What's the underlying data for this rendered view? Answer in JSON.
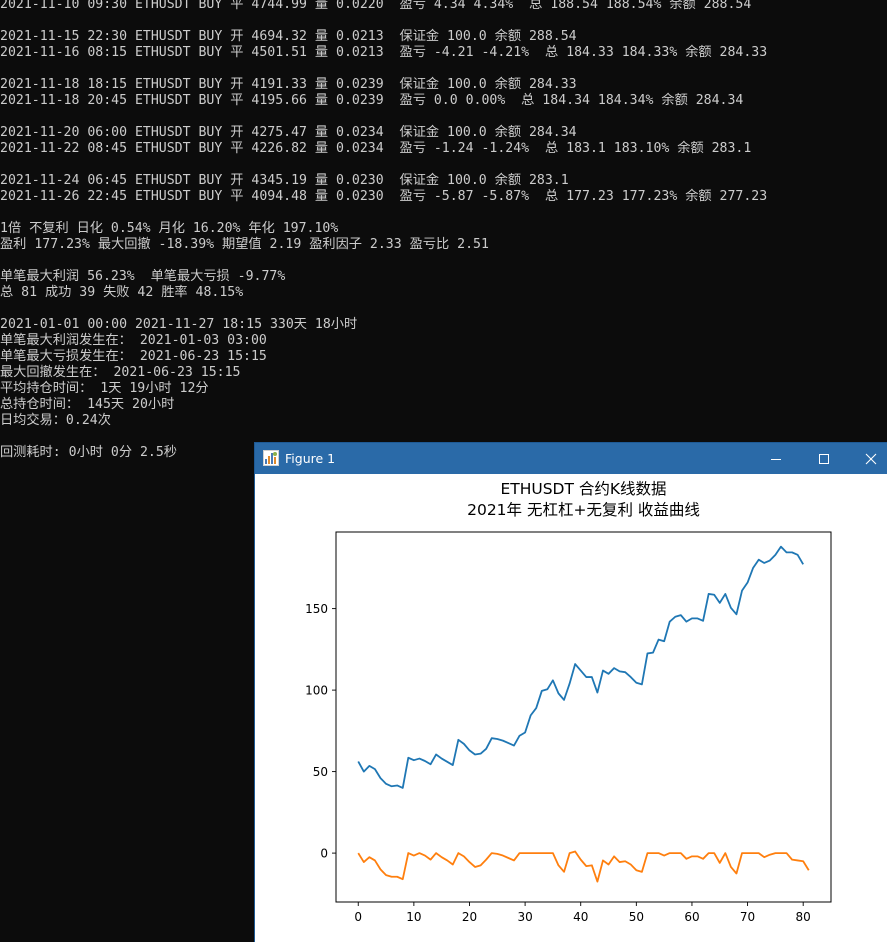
{
  "console": {
    "lines": [
      "2021-11-10 09:30 ETHUSDT BUY 平 4744.99 量 0.0220  盈亏 4.34 4.34%  总 188.54 188.54% 余额 288.54",
      "",
      "2021-11-15 22:30 ETHUSDT BUY 开 4694.32 量 0.0213  保证金 100.0 余额 288.54",
      "2021-11-16 08:15 ETHUSDT BUY 平 4501.51 量 0.0213  盈亏 -4.21 -4.21%  总 184.33 184.33% 余额 284.33",
      "",
      "2021-11-18 18:15 ETHUSDT BUY 开 4191.33 量 0.0239  保证金 100.0 余额 284.33",
      "2021-11-18 20:45 ETHUSDT BUY 平 4195.66 量 0.0239  盈亏 0.0 0.00%  总 184.34 184.34% 余额 284.34",
      "",
      "2021-11-20 06:00 ETHUSDT BUY 开 4275.47 量 0.0234  保证金 100.0 余额 284.34",
      "2021-11-22 08:45 ETHUSDT BUY 平 4226.82 量 0.0234  盈亏 -1.24 -1.24%  总 183.1 183.10% 余额 283.1",
      "",
      "2021-11-24 06:45 ETHUSDT BUY 开 4345.19 量 0.0230  保证金 100.0 余额 283.1",
      "2021-11-26 22:45 ETHUSDT BUY 平 4094.48 量 0.0230  盈亏 -5.87 -5.87%  总 177.23 177.23% 余额 277.23",
      "",
      "1倍 不复利 日化 0.54% 月化 16.20% 年化 197.10%",
      "盈利 177.23% 最大回撤 -18.39% 期望值 2.19 盈利因子 2.33 盈亏比 2.51",
      "",
      "单笔最大利润 56.23%  单笔最大亏损 -9.77%",
      "总 81 成功 39 失败 42 胜率 48.15%",
      "",
      "2021-01-01 00:00 2021-11-27 18:15 330天 18小时",
      "单笔最大利润发生在： 2021-01-03 03:00",
      "单笔最大亏损发生在： 2021-06-23 15:15",
      "最大回撤发生在： 2021-06-23 15:15",
      "平均持仓时间： 1天 19小时 12分",
      "总持仓时间： 145天 20小时",
      "日均交易：0.24次",
      "",
      "回测耗时: 0小时 0分 2.5秒"
    ]
  },
  "window": {
    "title": "Figure 1",
    "minimize_icon": "minimize-icon",
    "maximize_icon": "maximize-icon",
    "close_icon": "close-icon"
  },
  "chart_data": {
    "type": "line",
    "title": "ETHUSDT 合约K线数据",
    "subtitle": "2021年 无杠杠+无复利 收益曲线",
    "xlabel": "",
    "ylabel": "",
    "xlim": [
      -4,
      85
    ],
    "ylim": [
      -30,
      197
    ],
    "xticks": [
      0,
      10,
      20,
      30,
      40,
      50,
      60,
      70,
      80
    ],
    "yticks": [
      0,
      50,
      100,
      150
    ],
    "grid": false,
    "series": [
      {
        "color": "#1f77b4",
        "values": [
          56.2,
          50,
          53.5,
          51.5,
          46,
          42.5,
          41,
          41.5,
          40,
          58.5,
          57,
          58,
          56.5,
          54.5,
          60.5,
          58,
          56,
          54,
          69.5,
          67,
          63,
          60.5,
          61,
          64,
          70.5,
          70,
          69,
          67.5,
          66,
          72,
          74,
          84.5,
          89,
          99.5,
          100.5,
          106,
          98,
          94,
          104,
          116,
          112,
          108,
          108,
          98.5,
          112,
          110,
          113.5,
          111.5,
          111,
          108,
          104.5,
          103.5,
          122.5,
          123,
          131,
          130,
          142,
          145,
          146,
          142,
          144,
          144,
          142.5,
          159,
          158.5,
          153.5,
          159,
          150.5,
          146.5,
          161,
          166,
          175,
          180,
          178,
          179.5,
          183,
          188,
          184.5,
          184.5,
          183,
          177.2
        ]
      },
      {
        "color": "#ff7f0e",
        "values": [
          0,
          -5.5,
          -2.5,
          -4.5,
          -10,
          -13.5,
          -14.5,
          -14.5,
          -16,
          0,
          -1.5,
          0,
          -1.5,
          -4,
          0,
          -2.5,
          -4.5,
          -7,
          0,
          -2,
          -5.5,
          -8.5,
          -7.5,
          -4,
          0,
          -0.5,
          -1.5,
          -3,
          -4.5,
          0,
          0,
          0,
          0,
          0,
          0,
          0,
          -7.5,
          -11.5,
          0,
          1,
          -4,
          -8,
          -7.5,
          -17.5,
          -4.5,
          -7,
          -2,
          -5.5,
          -5,
          -7,
          -10.5,
          -11.5,
          0,
          0,
          0,
          -1.5,
          0,
          0,
          0,
          -3.5,
          -2,
          -2,
          -3.5,
          0,
          0,
          -6,
          0,
          -8.5,
          -12.5,
          0,
          0,
          0,
          0,
          -2.5,
          -1,
          0,
          0,
          0,
          -4,
          -4.5,
          -5,
          -10.5
        ]
      }
    ]
  }
}
